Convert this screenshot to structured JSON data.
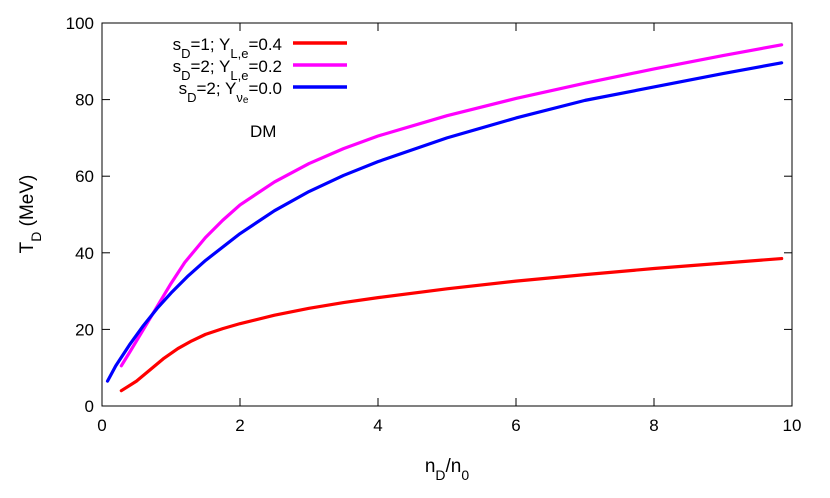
{
  "chart_data": {
    "type": "line",
    "xlabel": {
      "main": "n",
      "sub1": "D",
      "slash": "/n",
      "sub2": "0"
    },
    "ylabel": {
      "main": "T",
      "sub": "D",
      "rest": " (MeV)"
    },
    "xlim": [
      0,
      10
    ],
    "ylim": [
      0,
      100
    ],
    "xticks": [
      0,
      2,
      4,
      6,
      8,
      10
    ],
    "yticks": [
      0,
      20,
      40,
      60,
      80,
      100
    ],
    "xtick_labels": [
      "0",
      "2",
      "4",
      "6",
      "8",
      "10"
    ],
    "ytick_labels": [
      "0",
      "20",
      "40",
      "60",
      "80",
      "100"
    ],
    "grid": false,
    "legend_position": "top-left",
    "annotation": "DM",
    "series": [
      {
        "legend": {
          "s": "s",
          "s_sub": "D",
          "mid": "=1; Y",
          "y_sub": "L,e",
          "end": "=0.4"
        },
        "color": "#ff0000",
        "x": [
          0.28,
          0.5,
          0.7,
          0.9,
          1.1,
          1.3,
          1.5,
          1.75,
          2.0,
          2.5,
          3.0,
          3.5,
          4.0,
          5.0,
          6.0,
          7.0,
          8.0,
          9.0,
          9.85
        ],
        "y": [
          4.0,
          6.5,
          9.5,
          12.5,
          15.0,
          17.0,
          18.7,
          20.2,
          21.5,
          23.7,
          25.5,
          27.0,
          28.3,
          30.6,
          32.6,
          34.3,
          35.9,
          37.3,
          38.5
        ]
      },
      {
        "legend": {
          "s": "s",
          "s_sub": "D",
          "mid": "=2; Y",
          "y_sub": "L,e",
          "end": "=0.2"
        },
        "color": "#ff00ff",
        "x": [
          0.28,
          0.4,
          0.6,
          0.8,
          1.0,
          1.2,
          1.5,
          1.75,
          2.0,
          2.5,
          3.0,
          3.5,
          4.0,
          5.0,
          6.0,
          7.0,
          8.0,
          9.0,
          9.85
        ],
        "y": [
          10.5,
          14.0,
          20.0,
          26.0,
          32.0,
          37.5,
          44.0,
          48.5,
          52.5,
          58.5,
          63.3,
          67.2,
          70.5,
          75.8,
          80.3,
          84.3,
          88.0,
          91.5,
          94.3
        ]
      },
      {
        "legend": {
          "s": "s",
          "s_sub": "D",
          "mid": "=2; Y",
          "y_sub": "ν",
          "y_subsub": "e",
          "end": "=0.0"
        },
        "color": "#0000ff",
        "x": [
          0.08,
          0.2,
          0.4,
          0.6,
          0.8,
          1.0,
          1.25,
          1.5,
          2.0,
          2.5,
          3.0,
          3.5,
          4.0,
          5.0,
          6.0,
          7.0,
          8.0,
          9.0,
          9.85
        ],
        "y": [
          6.5,
          10.5,
          16.0,
          21.0,
          25.5,
          29.5,
          34.0,
          38.0,
          45.0,
          51.0,
          56.0,
          60.2,
          63.8,
          70.0,
          75.2,
          79.8,
          83.3,
          86.8,
          89.6
        ]
      }
    ]
  }
}
